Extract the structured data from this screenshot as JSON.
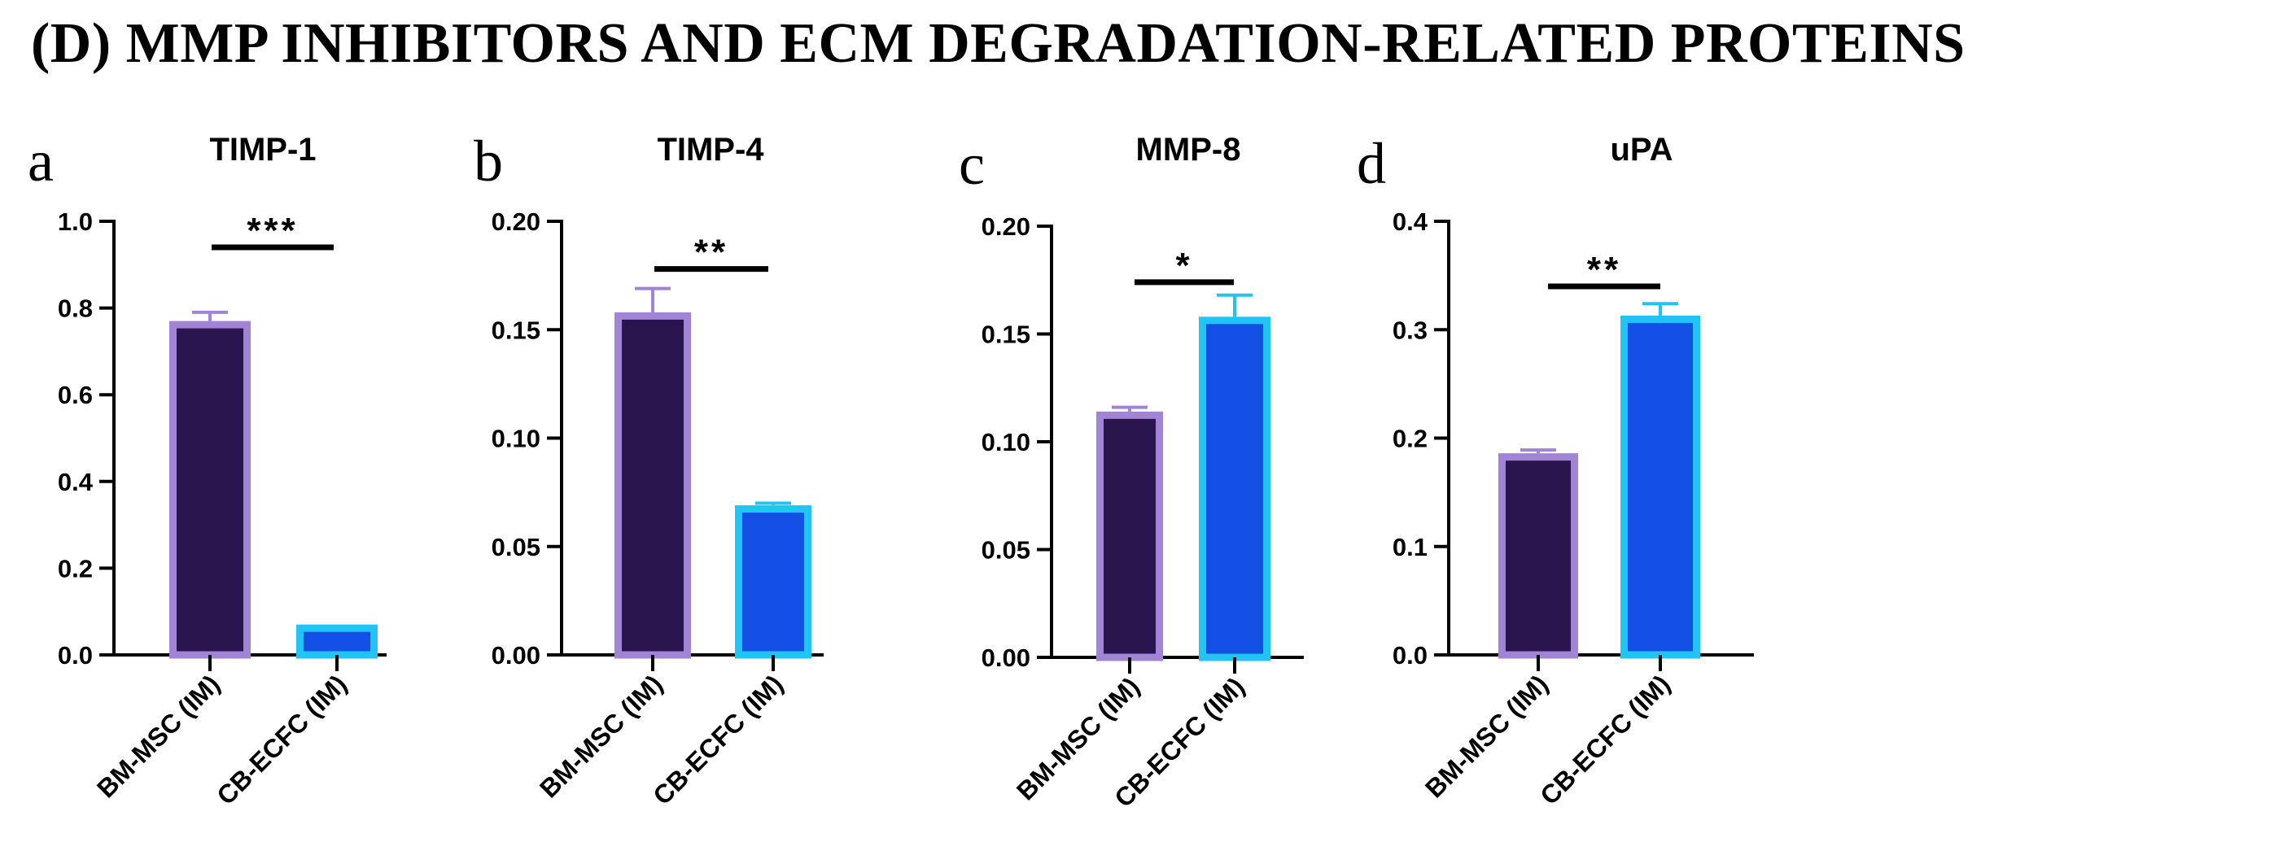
{
  "figure": {
    "title": "(D) MMP INHIBITORS AND ECM DEGRADATION-RELATED PROTEINS"
  },
  "colors": {
    "bm_fill": "#2b154e",
    "bm_edge": "#a184d6",
    "cb_fill": "#1450e6",
    "cb_edge": "#22c4f5",
    "axis": "#000000"
  },
  "chart_data": [
    {
      "type": "bar",
      "panel": "a",
      "title": "TIMP-1",
      "categories": [
        "BM-MSC (IM)",
        "CB-ECFC (IM)"
      ],
      "values": [
        0.77,
        0.07
      ],
      "errors": [
        0.02,
        0.0
      ],
      "ylim": [
        0,
        1.0
      ],
      "yticks": [
        0.0,
        0.2,
        0.4,
        0.6,
        0.8,
        1.0
      ],
      "ytick_labels": [
        "0.0",
        "0.2",
        "0.4",
        "0.6",
        "0.8",
        "1.0"
      ],
      "significance": "***",
      "sig_y": 0.94,
      "xlabel": "",
      "ylabel": ""
    },
    {
      "type": "bar",
      "panel": "b",
      "title": "TIMP-4",
      "categories": [
        "BM-MSC (IM)",
        "CB-ECFC (IM)"
      ],
      "values": [
        0.158,
        0.069
      ],
      "errors": [
        0.011,
        0.001
      ],
      "ylim": [
        0,
        0.2
      ],
      "yticks": [
        0.0,
        0.05,
        0.1,
        0.15,
        0.2
      ],
      "ytick_labels": [
        "0.00",
        "0.05",
        "0.10",
        "0.15",
        "0.20"
      ],
      "significance": "**",
      "sig_y": 0.178,
      "xlabel": "",
      "ylabel": ""
    },
    {
      "type": "bar",
      "panel": "c",
      "title": "MMP-8",
      "categories": [
        "BM-MSC (IM)",
        "CB-ECFC (IM)"
      ],
      "values": [
        0.114,
        0.158
      ],
      "errors": [
        0.002,
        0.01
      ],
      "ylim": [
        0,
        0.2
      ],
      "yticks": [
        0.0,
        0.05,
        0.1,
        0.15,
        0.2
      ],
      "ytick_labels": [
        "0.00",
        "0.05",
        "0.10",
        "0.15",
        "0.20"
      ],
      "significance": "*",
      "sig_y": 0.174,
      "xlabel": "",
      "ylabel": ""
    },
    {
      "type": "bar",
      "panel": "d",
      "title": "uPA",
      "categories": [
        "BM-MSC (IM)",
        "CB-ECFC (IM)"
      ],
      "values": [
        0.186,
        0.313
      ],
      "errors": [
        0.003,
        0.011
      ],
      "ylim": [
        0,
        0.4
      ],
      "yticks": [
        0.0,
        0.1,
        0.2,
        0.3,
        0.4
      ],
      "ytick_labels": [
        "0.0",
        "0.1",
        "0.2",
        "0.3",
        "0.4"
      ],
      "significance": "**",
      "sig_y": 0.34,
      "xlabel": "",
      "ylabel": ""
    }
  ]
}
